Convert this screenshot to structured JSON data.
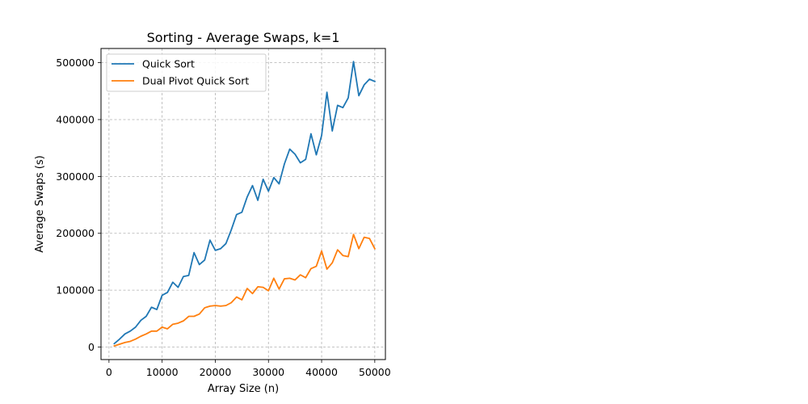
{
  "chart_data": {
    "type": "line",
    "title": "Sorting - Average Swaps, k=1",
    "xlabel": "Array Size (n)",
    "ylabel": "Average Swaps (s)",
    "xlim": [
      -1500,
      52000
    ],
    "ylim": [
      -22000,
      525000
    ],
    "xticks": [
      0,
      10000,
      20000,
      30000,
      40000,
      50000
    ],
    "xtick_labels": [
      "0",
      "10000",
      "20000",
      "30000",
      "40000",
      "50000"
    ],
    "yticks": [
      0,
      100000,
      200000,
      300000,
      400000,
      500000
    ],
    "ytick_labels": [
      "0",
      "100000",
      "200000",
      "300000",
      "400000",
      "500000"
    ],
    "grid": true,
    "legend_position": "top-left",
    "x": [
      1000,
      2000,
      3000,
      4000,
      5000,
      6000,
      7000,
      8000,
      9000,
      10000,
      11000,
      12000,
      13000,
      14000,
      15000,
      16000,
      17000,
      18000,
      19000,
      20000,
      21000,
      22000,
      23000,
      24000,
      25000,
      26000,
      27000,
      28000,
      29000,
      30000,
      31000,
      32000,
      33000,
      34000,
      35000,
      36000,
      37000,
      38000,
      39000,
      40000,
      41000,
      42000,
      43000,
      44000,
      45000,
      46000,
      47000,
      48000,
      49000,
      50000
    ],
    "series": [
      {
        "name": "Quick Sort",
        "color": "#1f77b4",
        "values": [
          6000,
          14000,
          23000,
          28000,
          35000,
          47000,
          54000,
          70000,
          66000,
          91000,
          96000,
          114000,
          105000,
          124000,
          126000,
          166000,
          145000,
          153000,
          188000,
          170000,
          173000,
          182000,
          206000,
          233000,
          237000,
          264000,
          284000,
          258000,
          295000,
          274000,
          298000,
          287000,
          322000,
          348000,
          339000,
          324000,
          330000,
          375000,
          338000,
          372000,
          448000,
          380000,
          425000,
          421000,
          438000,
          502000,
          442000,
          461000,
          471000,
          467000
        ]
      },
      {
        "name": "Dual Pivot Quick Sort",
        "color": "#ff7f0e",
        "values": [
          2000,
          5000,
          8000,
          10000,
          14000,
          19000,
          23000,
          28000,
          28000,
          35000,
          32000,
          40000,
          42000,
          46000,
          54000,
          54000,
          58000,
          69000,
          72000,
          73000,
          72000,
          73000,
          78000,
          88000,
          83000,
          103000,
          94000,
          106000,
          105000,
          99000,
          121000,
          102000,
          120000,
          121000,
          118000,
          127000,
          122000,
          138000,
          142000,
          169000,
          137000,
          148000,
          171000,
          161000,
          159000,
          198000,
          173000,
          193000,
          191000,
          173000
        ]
      }
    ]
  }
}
